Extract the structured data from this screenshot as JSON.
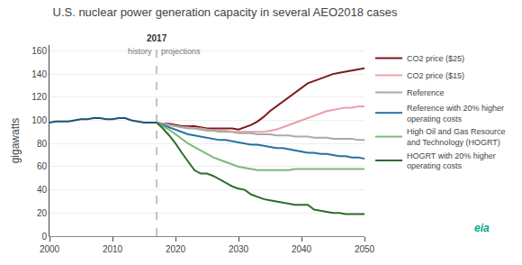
{
  "chart_data": {
    "type": "line",
    "title": "U.S. nuclear power generation capacity in several AEO2018 cases",
    "ylabel": "gigawatts",
    "xlim": [
      2000,
      2050
    ],
    "xticks": [
      2000,
      2010,
      2020,
      2030,
      2040,
      2050
    ],
    "ylim": [
      0,
      165
    ],
    "yticks": [
      0,
      20,
      40,
      60,
      80,
      100,
      120,
      140,
      160
    ],
    "grid": "y",
    "annotations": [
      {
        "text": "2017",
        "x": 2017,
        "line_style": "dashed"
      },
      {
        "text": "history",
        "x": 2017,
        "align": "right"
      },
      {
        "text": "projections",
        "x": 2017,
        "align": "left"
      },
      {
        "text": "eia"
      }
    ],
    "series": [
      {
        "color": "#1a5276",
        "x": [
          2000,
          2001,
          2002,
          2003,
          2004,
          2005,
          2006,
          2007,
          2008,
          2009,
          2010,
          2011,
          2012,
          2013,
          2014,
          2015,
          2016,
          2017
        ],
        "values": [
          98,
          99,
          99,
          99,
          100,
          101,
          101,
          102,
          102,
          101,
          101,
          102,
          102,
          100,
          99,
          98,
          98,
          98
        ]
      },
      {
        "name": "CO2 price ($25)",
        "color": "#7b1a1a",
        "x": [
          2017,
          2018,
          2019,
          2020,
          2021,
          2022,
          2023,
          2024,
          2025,
          2026,
          2027,
          2028,
          2029,
          2030,
          2031,
          2032,
          2033,
          2034,
          2035,
          2036,
          2037,
          2038,
          2039,
          2040,
          2041,
          2042,
          2043,
          2044,
          2045,
          2046,
          2047,
          2048,
          2049,
          2050
        ],
        "values": [
          98,
          97,
          97,
          96,
          95,
          95,
          95,
          94,
          93,
          93,
          93,
          93,
          93,
          92,
          94,
          96,
          99,
          103,
          108,
          112,
          116,
          120,
          124,
          128,
          132,
          134,
          136,
          138,
          140,
          141,
          142,
          143,
          144,
          145
        ]
      },
      {
        "name": "CO2 price ($15)",
        "color": "#e8a0a8",
        "x": [
          2017,
          2018,
          2019,
          2020,
          2021,
          2022,
          2023,
          2024,
          2025,
          2026,
          2027,
          2028,
          2029,
          2030,
          2031,
          2032,
          2033,
          2034,
          2035,
          2036,
          2037,
          2038,
          2039,
          2040,
          2041,
          2042,
          2043,
          2044,
          2045,
          2046,
          2047,
          2048,
          2049,
          2050
        ],
        "values": [
          98,
          97,
          96,
          95,
          94,
          94,
          93,
          93,
          92,
          91,
          91,
          91,
          90,
          90,
          90,
          90,
          90,
          90,
          91,
          92,
          94,
          96,
          98,
          100,
          102,
          104,
          106,
          108,
          109,
          110,
          111,
          111,
          112,
          112
        ]
      },
      {
        "name": "Reference",
        "color": "#aaaaaa",
        "x": [
          2017,
          2018,
          2019,
          2020,
          2021,
          2022,
          2023,
          2024,
          2025,
          2026,
          2027,
          2028,
          2029,
          2030,
          2031,
          2032,
          2033,
          2034,
          2035,
          2036,
          2037,
          2038,
          2039,
          2040,
          2041,
          2042,
          2043,
          2044,
          2045,
          2046,
          2047,
          2048,
          2049,
          2050
        ],
        "values": [
          98,
          97,
          96,
          95,
          94,
          93,
          93,
          92,
          91,
          91,
          90,
          90,
          90,
          89,
          89,
          89,
          88,
          88,
          88,
          87,
          87,
          87,
          86,
          86,
          86,
          85,
          85,
          85,
          84,
          84,
          84,
          84,
          83,
          83
        ]
      },
      {
        "name": "Reference with 20% higher\noperating costs",
        "color": "#2471a3",
        "x": [
          2017,
          2018,
          2019,
          2020,
          2021,
          2022,
          2023,
          2024,
          2025,
          2026,
          2027,
          2028,
          2029,
          2030,
          2031,
          2032,
          2033,
          2034,
          2035,
          2036,
          2037,
          2038,
          2039,
          2040,
          2041,
          2042,
          2043,
          2044,
          2045,
          2046,
          2047,
          2048,
          2049,
          2050
        ],
        "values": [
          98,
          96,
          94,
          92,
          90,
          88,
          87,
          86,
          85,
          84,
          83,
          83,
          82,
          81,
          80,
          79,
          79,
          78,
          77,
          76,
          76,
          75,
          74,
          73,
          72,
          72,
          71,
          71,
          70,
          69,
          69,
          68,
          68,
          67
        ]
      },
      {
        "name": "High Oil and Gas Resource\nand Technology (HOGRT)",
        "color": "#7db87d",
        "x": [
          2017,
          2018,
          2019,
          2020,
          2021,
          2022,
          2023,
          2024,
          2025,
          2026,
          2027,
          2028,
          2029,
          2030,
          2031,
          2032,
          2033,
          2034,
          2035,
          2036,
          2037,
          2038,
          2039,
          2040,
          2041,
          2042,
          2043,
          2044,
          2045,
          2046,
          2047,
          2048,
          2049,
          2050
        ],
        "values": [
          98,
          95,
          92,
          88,
          84,
          80,
          77,
          74,
          71,
          68,
          66,
          64,
          62,
          60,
          59,
          58,
          57,
          57,
          57,
          57,
          57,
          57,
          58,
          58,
          58,
          58,
          58,
          58,
          58,
          58,
          58,
          58,
          58,
          58
        ]
      },
      {
        "name": "HOGRT with 20% higher\noperating costs",
        "color": "#2e6b2e",
        "x": [
          2017,
          2018,
          2019,
          2020,
          2021,
          2022,
          2023,
          2024,
          2025,
          2026,
          2027,
          2028,
          2029,
          2030,
          2031,
          2032,
          2033,
          2034,
          2035,
          2036,
          2037,
          2038,
          2039,
          2040,
          2041,
          2042,
          2043,
          2044,
          2045,
          2046,
          2047,
          2048,
          2049,
          2050
        ],
        "values": [
          98,
          93,
          87,
          80,
          72,
          64,
          57,
          54,
          54,
          52,
          49,
          46,
          43,
          41,
          40,
          36,
          34,
          32,
          31,
          30,
          29,
          28,
          27,
          27,
          27,
          23,
          22,
          21,
          20,
          20,
          19,
          19,
          19,
          19
        ]
      }
    ]
  }
}
